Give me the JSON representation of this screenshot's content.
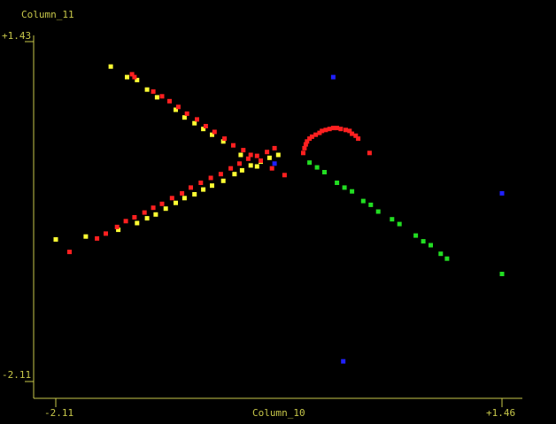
{
  "chart_data": {
    "type": "scatter",
    "title": "",
    "xlabel": "Column_10",
    "ylabel": "Column_11",
    "xlim": [
      -2.11,
      1.46
    ],
    "ylim": [
      -2.11,
      1.43
    ],
    "x_tick_labels": [
      "-2.11",
      "+1.46"
    ],
    "y_tick_labels": [
      "+1.43",
      "-2.11"
    ],
    "colors": {
      "background": "#000000",
      "axis": "#c8c84a",
      "label": "#c8c84a",
      "yellow": "#ffff33",
      "red": "#ff2020",
      "green": "#22dd22",
      "blue": "#2020ff"
    },
    "series": [
      {
        "color": "yellow",
        "points": [
          [
            -1.67,
            1.17
          ],
          [
            -1.54,
            1.06
          ],
          [
            -1.46,
            1.03
          ],
          [
            -1.38,
            0.93
          ],
          [
            -1.3,
            0.85
          ],
          [
            -1.15,
            0.72
          ],
          [
            -1.08,
            0.64
          ],
          [
            -1.0,
            0.58
          ],
          [
            -0.93,
            0.52
          ],
          [
            -0.86,
            0.46
          ],
          [
            -0.77,
            0.39
          ],
          [
            -0.63,
            0.25
          ],
          [
            -0.5,
            0.13
          ],
          [
            -2.11,
            -0.63
          ],
          [
            -1.87,
            -0.6
          ],
          [
            -1.61,
            -0.53
          ],
          [
            -1.46,
            -0.46
          ],
          [
            -1.38,
            -0.41
          ],
          [
            -1.31,
            -0.37
          ],
          [
            -1.23,
            -0.31
          ],
          [
            -1.15,
            -0.25
          ],
          [
            -1.08,
            -0.2
          ],
          [
            -1.0,
            -0.16
          ],
          [
            -0.93,
            -0.11
          ],
          [
            -0.86,
            -0.07
          ],
          [
            -0.77,
            -0.02
          ],
          [
            -0.68,
            0.05
          ],
          [
            -0.62,
            0.09
          ],
          [
            -0.55,
            0.14
          ],
          [
            -0.47,
            0.18
          ],
          [
            -0.4,
            0.22
          ],
          [
            -0.33,
            0.25
          ]
        ]
      },
      {
        "color": "red",
        "points": [
          [
            -1.5,
            1.09
          ],
          [
            -1.48,
            1.06
          ],
          [
            -1.33,
            0.91
          ],
          [
            -1.26,
            0.86
          ],
          [
            -1.2,
            0.81
          ],
          [
            -1.13,
            0.75
          ],
          [
            -1.06,
            0.68
          ],
          [
            -0.98,
            0.62
          ],
          [
            -0.91,
            0.55
          ],
          [
            -0.84,
            0.49
          ],
          [
            -0.76,
            0.42
          ],
          [
            -0.69,
            0.35
          ],
          [
            -0.61,
            0.3
          ],
          [
            -0.55,
            0.25
          ],
          [
            -0.47,
            0.19
          ],
          [
            -0.38,
            0.11
          ],
          [
            -0.28,
            0.04
          ],
          [
            -2.0,
            -0.76
          ],
          [
            -1.78,
            -0.62
          ],
          [
            -1.71,
            -0.57
          ],
          [
            -1.62,
            -0.5
          ],
          [
            -1.55,
            -0.44
          ],
          [
            -1.48,
            -0.4
          ],
          [
            -1.4,
            -0.35
          ],
          [
            -1.33,
            -0.3
          ],
          [
            -1.26,
            -0.26
          ],
          [
            -1.18,
            -0.2
          ],
          [
            -1.1,
            -0.15
          ],
          [
            -1.03,
            -0.09
          ],
          [
            -0.95,
            -0.04
          ],
          [
            -0.87,
            0.01
          ],
          [
            -0.79,
            0.05
          ],
          [
            -0.71,
            0.11
          ],
          [
            -0.64,
            0.16
          ],
          [
            -0.57,
            0.21
          ],
          [
            -0.5,
            0.24
          ],
          [
            -0.42,
            0.28
          ],
          [
            -0.36,
            0.32
          ],
          [
            -0.13,
            0.27
          ],
          [
            -0.12,
            0.32
          ],
          [
            -0.11,
            0.36
          ],
          [
            -0.1,
            0.39
          ],
          [
            -0.08,
            0.42
          ],
          [
            -0.06,
            0.44
          ],
          [
            -0.03,
            0.46
          ],
          [
            0.0,
            0.48
          ],
          [
            0.02,
            0.5
          ],
          [
            0.05,
            0.51
          ],
          [
            0.08,
            0.52
          ],
          [
            0.11,
            0.53
          ],
          [
            0.14,
            0.53
          ],
          [
            0.17,
            0.52
          ],
          [
            0.21,
            0.51
          ],
          [
            0.24,
            0.5
          ],
          [
            0.26,
            0.47
          ],
          [
            0.29,
            0.45
          ],
          [
            0.31,
            0.42
          ],
          [
            0.4,
            0.27
          ]
        ]
      },
      {
        "color": "green",
        "points": [
          [
            -0.08,
            0.17
          ],
          [
            -0.02,
            0.12
          ],
          [
            0.04,
            0.07
          ],
          [
            0.14,
            -0.04
          ],
          [
            0.2,
            -0.09
          ],
          [
            0.26,
            -0.13
          ],
          [
            0.35,
            -0.23
          ],
          [
            0.41,
            -0.27
          ],
          [
            0.47,
            -0.34
          ],
          [
            0.58,
            -0.42
          ],
          [
            0.64,
            -0.47
          ],
          [
            0.77,
            -0.59
          ],
          [
            0.83,
            -0.65
          ],
          [
            0.89,
            -0.69
          ],
          [
            0.97,
            -0.78
          ],
          [
            1.02,
            -0.83
          ],
          [
            1.46,
            -0.99
          ]
        ]
      },
      {
        "color": "blue",
        "points": [
          [
            0.11,
            1.06
          ],
          [
            -0.36,
            0.16
          ],
          [
            1.46,
            -0.15
          ],
          [
            0.19,
            -1.9
          ]
        ]
      }
    ]
  }
}
